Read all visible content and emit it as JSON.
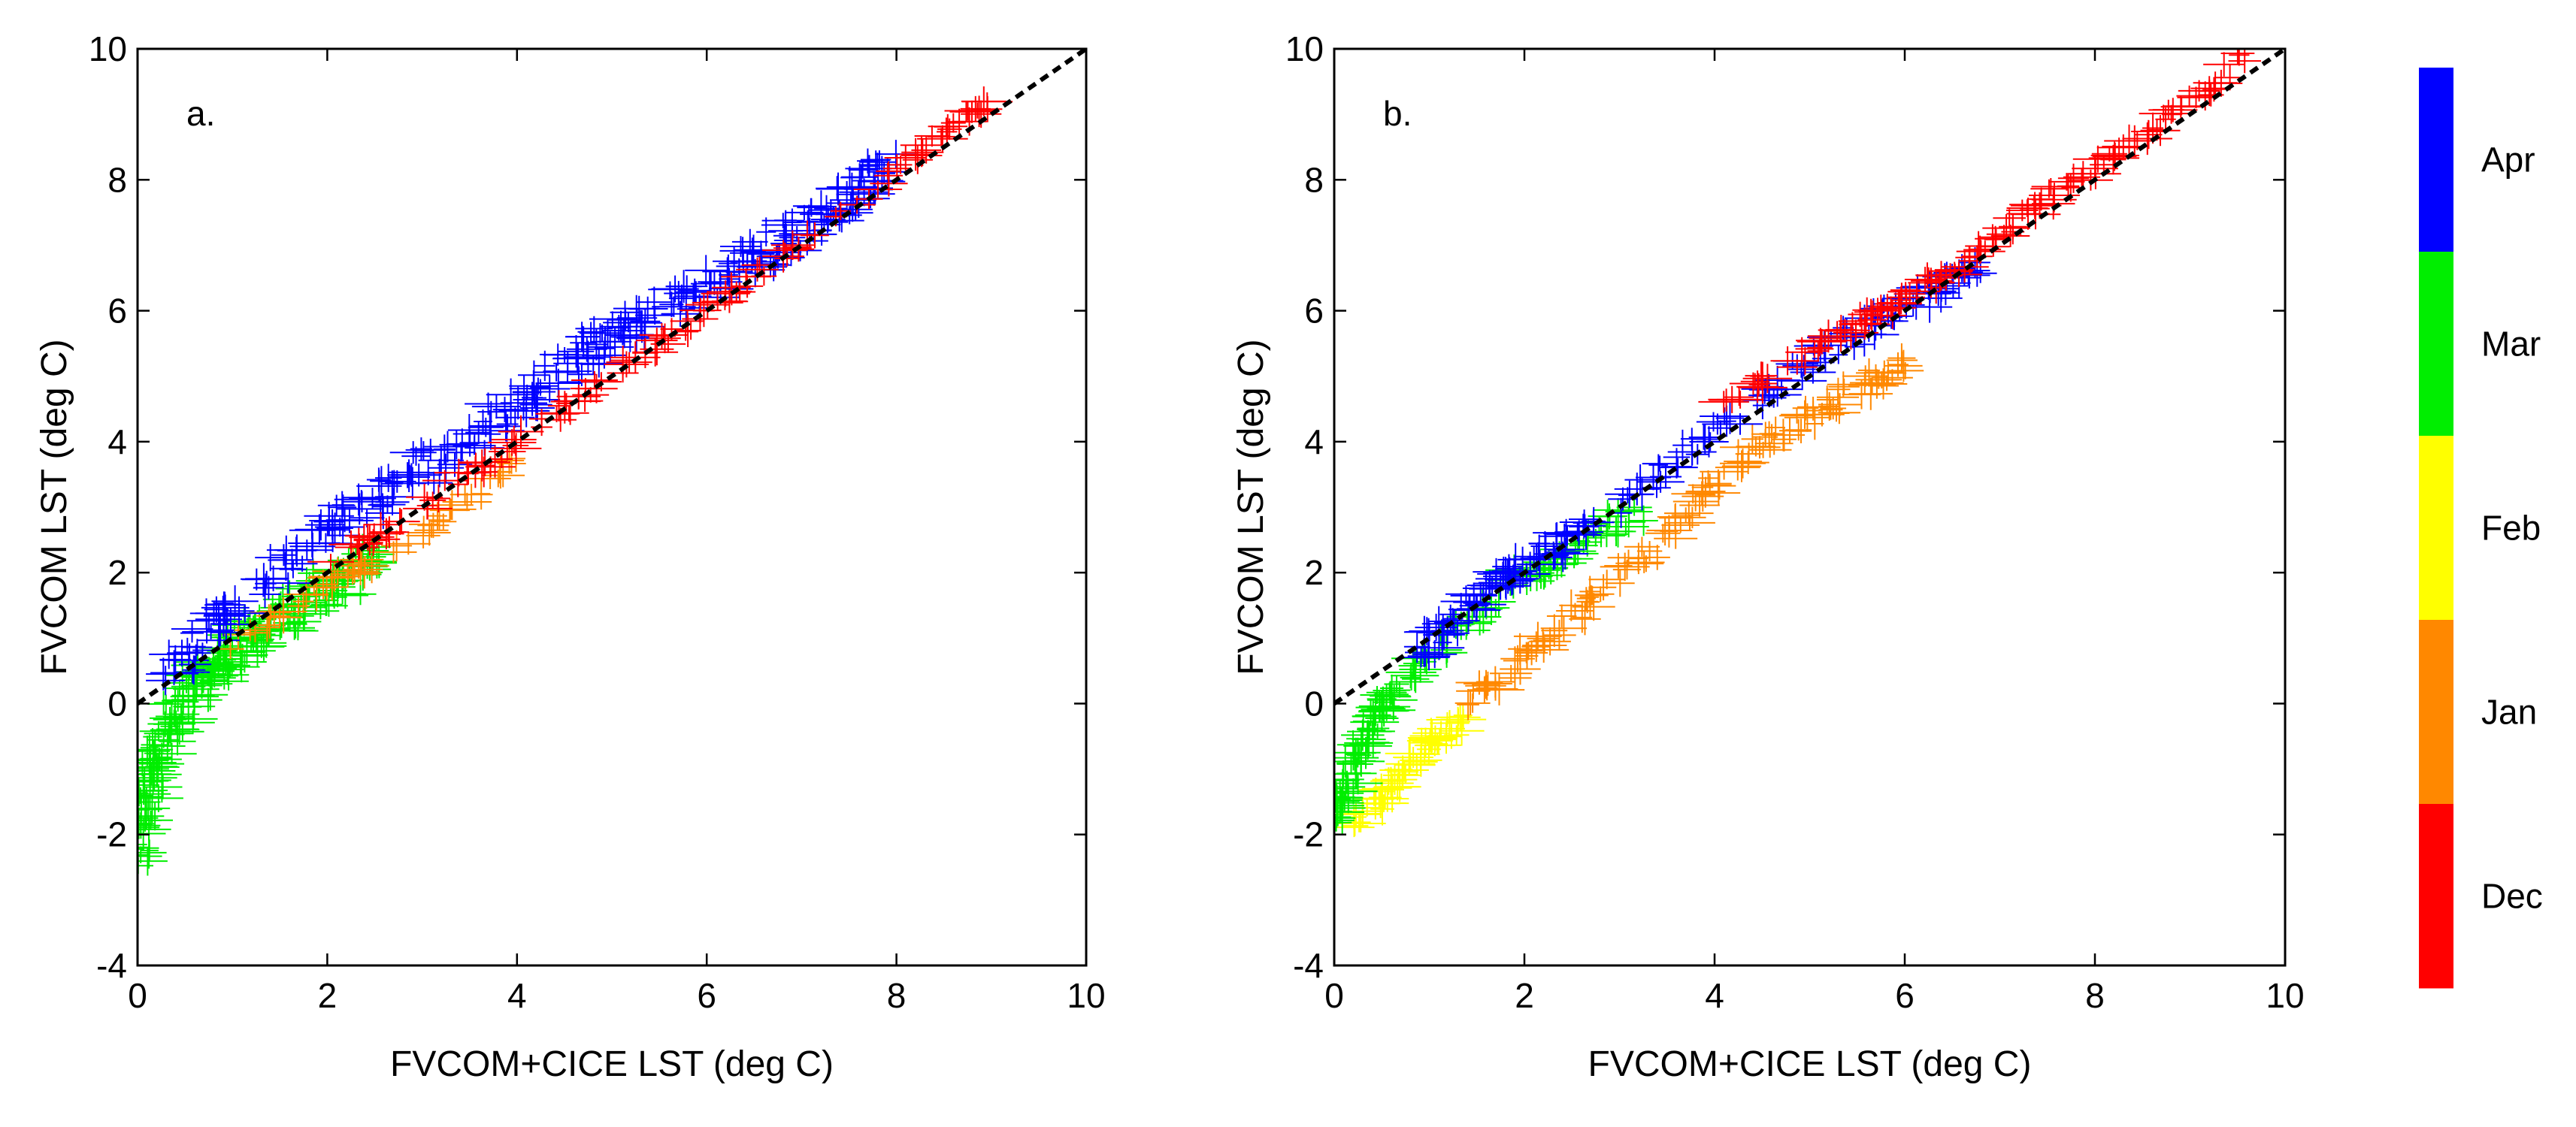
{
  "chart_data": [
    {
      "type": "scatter",
      "panel_label": "a.",
      "xlabel": "FVCOM+CICE LST (deg C)",
      "ylabel": "FVCOM LST (deg C)",
      "xlim": [
        0,
        10
      ],
      "ylim": [
        -4,
        10
      ],
      "xticks": [
        "0",
        "2",
        "4",
        "6",
        "8",
        "10"
      ],
      "yticks": [
        "-4",
        "-2",
        "0",
        "2",
        "4",
        "6",
        "8",
        "10"
      ],
      "reference_line": {
        "label": "1:1",
        "x": [
          0,
          10
        ],
        "y": [
          0,
          10
        ],
        "style": "dashed"
      },
      "marker": "+",
      "series": [
        {
          "name": "Mar",
          "color": "#00ee00",
          "trend": [
            [
              0.0,
              -2.2
            ],
            [
              0.1,
              -1.6
            ],
            [
              0.2,
              -0.8
            ],
            [
              0.4,
              -0.2
            ],
            [
              0.7,
              0.4
            ],
            [
              1.0,
              0.8
            ],
            [
              1.5,
              1.3
            ],
            [
              2.0,
              1.8
            ],
            [
              2.5,
              2.2
            ]
          ],
          "spread": 0.35,
          "count": 260
        },
        {
          "name": "Jan",
          "color": "#ff8800",
          "trend": [
            [
              1.0,
              0.9
            ],
            [
              2.0,
              1.8
            ],
            [
              3.0,
              2.6
            ],
            [
              4.0,
              3.7
            ]
          ],
          "spread": 0.12,
          "count": 60
        },
        {
          "name": "Apr",
          "color": "#0000ff",
          "trend": [
            [
              0.3,
              0.4
            ],
            [
              1.0,
              1.5
            ],
            [
              2.0,
              2.6
            ],
            [
              3.0,
              3.6
            ],
            [
              4.0,
              4.6
            ],
            [
              5.0,
              5.6
            ],
            [
              6.0,
              6.4
            ],
            [
              7.0,
              7.2
            ],
            [
              8.0,
              8.3
            ]
          ],
          "spread": 0.28,
          "count": 330
        },
        {
          "name": "Dec",
          "color": "#ff0000",
          "trend": [
            [
              2.0,
              2.1
            ],
            [
              4.0,
              4.0
            ],
            [
              6.0,
              6.0
            ],
            [
              7.5,
              7.6
            ],
            [
              9.0,
              9.2
            ]
          ],
          "spread": 0.12,
          "count": 140
        }
      ]
    },
    {
      "type": "scatter",
      "panel_label": "b.",
      "xlabel": "FVCOM+CICE LST (deg C)",
      "ylabel": "FVCOM LST (deg C)",
      "xlim": [
        0,
        10
      ],
      "ylim": [
        -4,
        10
      ],
      "xticks": [
        "0",
        "2",
        "4",
        "6",
        "8",
        "10"
      ],
      "yticks": [
        "-4",
        "-2",
        "0",
        "2",
        "4",
        "6",
        "8",
        "10"
      ],
      "reference_line": {
        "label": "1:1",
        "x": [
          0,
          10
        ],
        "y": [
          0,
          10
        ],
        "style": "dashed"
      },
      "marker": "+",
      "series": [
        {
          "name": "Feb",
          "color": "#ffff00",
          "trend": [
            [
              0.2,
              -1.8
            ],
            [
              0.6,
              -1.3
            ],
            [
              1.0,
              -0.6
            ],
            [
              1.4,
              -0.2
            ]
          ],
          "spread": 0.15,
          "count": 70
        },
        {
          "name": "Jan",
          "color": "#ff8800",
          "trend": [
            [
              1.4,
              0.0
            ],
            [
              2.0,
              0.7
            ],
            [
              2.8,
              1.7
            ],
            [
              3.5,
              2.6
            ],
            [
              4.2,
              3.7
            ],
            [
              5.0,
              4.4
            ],
            [
              6.0,
              5.2
            ]
          ],
          "spread": 0.18,
          "count": 150
        },
        {
          "name": "Mar",
          "color": "#00ee00",
          "trend": [
            [
              0.0,
              -1.7
            ],
            [
              0.2,
              -1.0
            ],
            [
              0.5,
              0.0
            ],
            [
              0.9,
              0.6
            ],
            [
              1.8,
              1.8
            ],
            [
              2.5,
              2.3
            ],
            [
              3.2,
              3.0
            ]
          ],
          "spread": 0.22,
          "count": 160
        },
        {
          "name": "Apr",
          "color": "#0000ff",
          "trend": [
            [
              0.9,
              0.8
            ],
            [
              1.5,
              1.6
            ],
            [
              2.0,
              2.1
            ],
            [
              3.0,
              3.0
            ],
            [
              4.0,
              4.2
            ],
            [
              5.0,
              5.2
            ],
            [
              6.0,
              6.1
            ],
            [
              6.8,
              6.6
            ]
          ],
          "spread": 0.2,
          "count": 210
        },
        {
          "name": "Dec",
          "color": "#ff0000",
          "trend": [
            [
              4.0,
              4.5
            ],
            [
              5.5,
              5.8
            ],
            [
              6.5,
              6.6
            ],
            [
              7.5,
              7.7
            ],
            [
              8.5,
              8.6
            ],
            [
              9.6,
              9.9
            ]
          ],
          "spread": 0.14,
          "count": 150
        }
      ]
    }
  ],
  "colorbar": {
    "entries": [
      {
        "label": "Apr",
        "color": "#0000ff"
      },
      {
        "label": "Mar",
        "color": "#00ee00"
      },
      {
        "label": "Feb",
        "color": "#ffff00"
      },
      {
        "label": "Jan",
        "color": "#ff8800"
      },
      {
        "label": "Dec",
        "color": "#ff0000"
      }
    ]
  }
}
